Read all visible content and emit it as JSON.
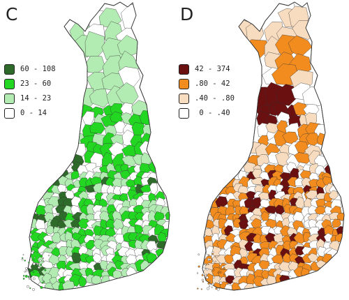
{
  "panels": [
    {
      "label": "C",
      "palette": {
        "high": "#2e6b2a",
        "mid": "#22d622",
        "low": "#b3ecb3",
        "none": "#ffffff",
        "stroke": "#333333"
      },
      "legend": [
        {
          "range": "60 - 108",
          "color": "#2e6b2a"
        },
        {
          "range": "23 - 60",
          "color": "#22d622"
        },
        {
          "range": "14 - 23",
          "color": "#b3ecb3"
        },
        {
          "range": "0 - 14",
          "color": "#ffffff"
        }
      ]
    },
    {
      "label": "D",
      "palette": {
        "high": "#6b1010",
        "mid": "#f28c1f",
        "low": "#f8dcc0",
        "none": "#ffffff",
        "stroke": "#333333"
      },
      "legend": [
        {
          "range": "42 - 374",
          "color": "#6b1010"
        },
        {
          "range": ".80 - 42",
          "color": "#f28c1f"
        },
        {
          "range": ".40 - .80",
          "color": "#f8dcc0"
        },
        {
          "range": " 0 - .40",
          "color": "#ffffff"
        }
      ]
    }
  ]
}
